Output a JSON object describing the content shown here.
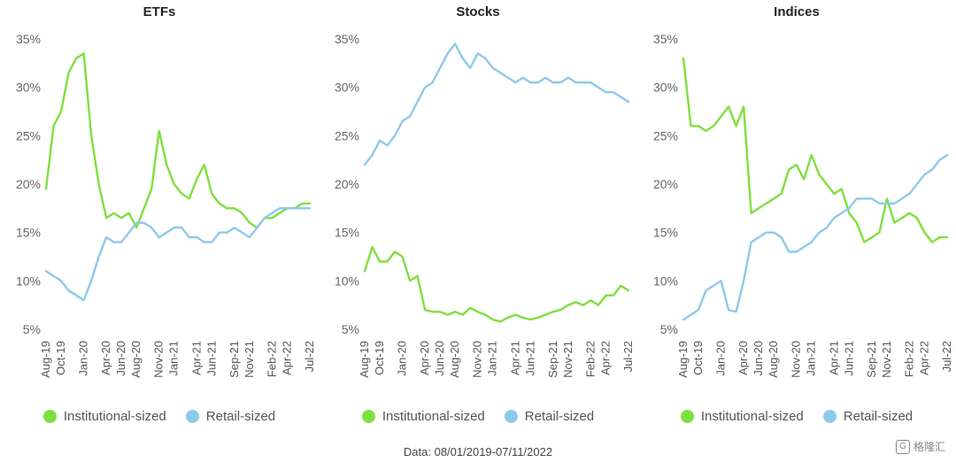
{
  "footer": {
    "text": "Data: 08/01/2019-07/11/2022"
  },
  "watermark": {
    "text": "格隆汇",
    "icon": "G"
  },
  "colors": {
    "institutional": "#7ee03f",
    "retail": "#8ec9ea"
  },
  "legend": {
    "institutional": "Institutional-sized",
    "retail": "Retail-sized"
  },
  "chart_data": [
    {
      "type": "line",
      "title": "ETFs",
      "ylim": [
        5,
        35
      ],
      "yticks": [
        "35%",
        "30%",
        "25%",
        "20%",
        "15%",
        "10%",
        "5%"
      ],
      "xlim": [
        "2019-08",
        "2022-07"
      ],
      "xticks": [
        "Aug-19",
        "Oct-19",
        "Jan-20",
        "Apr-20",
        "Jun-20",
        "Aug-20",
        "Nov-20",
        "Jan-21",
        "Apr-21",
        "Jun-21",
        "Sep-21",
        "Nov-21",
        "Feb-22",
        "Apr-22",
        "Jul-22"
      ],
      "legend_position": "bottom",
      "series": [
        {
          "name": "Institutional-sized",
          "color": "#7ee03f",
          "x": [
            "2019-08",
            "2019-09",
            "2019-10",
            "2019-11",
            "2019-12",
            "2020-01",
            "2020-02",
            "2020-03",
            "2020-04",
            "2020-05",
            "2020-06",
            "2020-07",
            "2020-08",
            "2020-09",
            "2020-10",
            "2020-11",
            "2020-12",
            "2021-01",
            "2021-02",
            "2021-03",
            "2021-04",
            "2021-05",
            "2021-06",
            "2021-07",
            "2021-08",
            "2021-09",
            "2021-10",
            "2021-11",
            "2021-12",
            "2022-01",
            "2022-02",
            "2022-03",
            "2022-04",
            "2022-05",
            "2022-06",
            "2022-07"
          ],
          "values": [
            19.5,
            26,
            27.5,
            31.5,
            33,
            33.5,
            25,
            20,
            16.5,
            17,
            16.5,
            17,
            15.5,
            17.5,
            19.5,
            25.5,
            22,
            20,
            19,
            18.5,
            20.5,
            22,
            19,
            18,
            17.5,
            17.5,
            17,
            16,
            15.5,
            16.5,
            16.5,
            17,
            17.5,
            17.5,
            18,
            18
          ]
        },
        {
          "name": "Retail-sized",
          "color": "#8ec9ea",
          "x": [
            "2019-08",
            "2019-09",
            "2019-10",
            "2019-11",
            "2019-12",
            "2020-01",
            "2020-02",
            "2020-03",
            "2020-04",
            "2020-05",
            "2020-06",
            "2020-07",
            "2020-08",
            "2020-09",
            "2020-10",
            "2020-11",
            "2020-12",
            "2021-01",
            "2021-02",
            "2021-03",
            "2021-04",
            "2021-05",
            "2021-06",
            "2021-07",
            "2021-08",
            "2021-09",
            "2021-10",
            "2021-11",
            "2021-12",
            "2022-01",
            "2022-02",
            "2022-03",
            "2022-04",
            "2022-05",
            "2022-06",
            "2022-07"
          ],
          "values": [
            11,
            10.5,
            10,
            9,
            8.5,
            8,
            10,
            12.5,
            14.5,
            14,
            14,
            15,
            16,
            16,
            15.5,
            14.5,
            15,
            15.5,
            15.5,
            14.5,
            14.5,
            14,
            14,
            15,
            15,
            15.5,
            15,
            14.5,
            15.5,
            16.5,
            17,
            17.5,
            17.5,
            17.5,
            17.5,
            17.5
          ]
        }
      ]
    },
    {
      "type": "line",
      "title": "Stocks",
      "ylim": [
        5,
        35
      ],
      "yticks": [
        "35%",
        "30%",
        "25%",
        "20%",
        "15%",
        "10%",
        "5%"
      ],
      "xlim": [
        "2019-08",
        "2022-07"
      ],
      "xticks": [
        "Aug-19",
        "Oct-19",
        "Jan-20",
        "Apr-20",
        "Jun-20",
        "Aug-20",
        "Nov-20",
        "Jan-21",
        "Apr-21",
        "Jun-21",
        "Sep-21",
        "Nov-21",
        "Feb-22",
        "Apr-22",
        "Jul-22"
      ],
      "legend_position": "bottom",
      "series": [
        {
          "name": "Institutional-sized",
          "color": "#7ee03f",
          "x": [
            "2019-08",
            "2019-09",
            "2019-10",
            "2019-11",
            "2019-12",
            "2020-01",
            "2020-02",
            "2020-03",
            "2020-04",
            "2020-05",
            "2020-06",
            "2020-07",
            "2020-08",
            "2020-09",
            "2020-10",
            "2020-11",
            "2020-12",
            "2021-01",
            "2021-02",
            "2021-03",
            "2021-04",
            "2021-05",
            "2021-06",
            "2021-07",
            "2021-08",
            "2021-09",
            "2021-10",
            "2021-11",
            "2021-12",
            "2022-01",
            "2022-02",
            "2022-03",
            "2022-04",
            "2022-05",
            "2022-06",
            "2022-07"
          ],
          "values": [
            11,
            13.5,
            12,
            12,
            13,
            12.5,
            10,
            10.5,
            7,
            6.8,
            6.8,
            6.5,
            6.8,
            6.5,
            7.2,
            6.8,
            6.5,
            6,
            5.8,
            6.2,
            6.5,
            6.2,
            6,
            6.2,
            6.5,
            6.8,
            7,
            7.5,
            7.8,
            7.5,
            8,
            7.5,
            8.5,
            8.5,
            9.5,
            9
          ]
        },
        {
          "name": "Retail-sized",
          "color": "#8ec9ea",
          "x": [
            "2019-08",
            "2019-09",
            "2019-10",
            "2019-11",
            "2019-12",
            "2020-01",
            "2020-02",
            "2020-03",
            "2020-04",
            "2020-05",
            "2020-06",
            "2020-07",
            "2020-08",
            "2020-09",
            "2020-10",
            "2020-11",
            "2020-12",
            "2021-01",
            "2021-02",
            "2021-03",
            "2021-04",
            "2021-05",
            "2021-06",
            "2021-07",
            "2021-08",
            "2021-09",
            "2021-10",
            "2021-11",
            "2021-12",
            "2022-01",
            "2022-02",
            "2022-03",
            "2022-04",
            "2022-05",
            "2022-06",
            "2022-07"
          ],
          "values": [
            22,
            23,
            24.5,
            24,
            25,
            26.5,
            27,
            28.5,
            30,
            30.5,
            32,
            33.5,
            34.5,
            33,
            32,
            33.5,
            33,
            32,
            31.5,
            31,
            30.5,
            31,
            30.5,
            30.5,
            31,
            30.5,
            30.5,
            31,
            30.5,
            30.5,
            30.5,
            30,
            29.5,
            29.5,
            29,
            28.5
          ]
        }
      ]
    },
    {
      "type": "line",
      "title": "Indices",
      "ylim": [
        5,
        35
      ],
      "yticks": [
        "35%",
        "30%",
        "25%",
        "20%",
        "15%",
        "10%",
        "5%"
      ],
      "xlim": [
        "2019-08",
        "2022-07"
      ],
      "xticks": [
        "Aug-19",
        "Oct-19",
        "Jan-20",
        "Apr-20",
        "Jun-20",
        "Aug-20",
        "Nov-20",
        "Jan-21",
        "Apr-21",
        "Jun-21",
        "Sep-21",
        "Nov-21",
        "Feb-22",
        "Apr-22",
        "Jul-22"
      ],
      "legend_position": "bottom",
      "series": [
        {
          "name": "Institutional-sized",
          "color": "#7ee03f",
          "x": [
            "2019-08",
            "2019-09",
            "2019-10",
            "2019-11",
            "2019-12",
            "2020-01",
            "2020-02",
            "2020-03",
            "2020-04",
            "2020-05",
            "2020-06",
            "2020-07",
            "2020-08",
            "2020-09",
            "2020-10",
            "2020-11",
            "2020-12",
            "2021-01",
            "2021-02",
            "2021-03",
            "2021-04",
            "2021-05",
            "2021-06",
            "2021-07",
            "2021-08",
            "2021-09",
            "2021-10",
            "2021-11",
            "2021-12",
            "2022-01",
            "2022-02",
            "2022-03",
            "2022-04",
            "2022-05",
            "2022-06",
            "2022-07"
          ],
          "values": [
            33,
            26,
            26,
            25.5,
            26,
            27,
            28,
            26,
            28,
            17,
            17.5,
            18,
            18.5,
            19,
            21.5,
            22,
            20.5,
            23,
            21,
            20,
            19,
            19.5,
            17,
            16,
            14,
            14.5,
            15,
            18.5,
            16,
            16.5,
            17,
            16.5,
            15,
            14,
            14.5,
            14.5
          ]
        },
        {
          "name": "Retail-sized",
          "color": "#8ec9ea",
          "x": [
            "2019-08",
            "2019-09",
            "2019-10",
            "2019-11",
            "2019-12",
            "2020-01",
            "2020-02",
            "2020-03",
            "2020-04",
            "2020-05",
            "2020-06",
            "2020-07",
            "2020-08",
            "2020-09",
            "2020-10",
            "2020-11",
            "2020-12",
            "2021-01",
            "2021-02",
            "2021-03",
            "2021-04",
            "2021-05",
            "2021-06",
            "2021-07",
            "2021-08",
            "2021-09",
            "2021-10",
            "2021-11",
            "2021-12",
            "2022-01",
            "2022-02",
            "2022-03",
            "2022-04",
            "2022-05",
            "2022-06",
            "2022-07"
          ],
          "values": [
            6,
            6.5,
            7,
            9,
            9.5,
            10,
            7,
            6.8,
            10,
            14,
            14.5,
            15,
            15,
            14.5,
            13,
            13,
            13.5,
            14,
            15,
            15.5,
            16.5,
            17,
            17.5,
            18.5,
            18.5,
            18.5,
            18,
            18,
            18,
            18.5,
            19,
            20,
            21,
            21.5,
            22.5,
            23
          ]
        }
      ]
    }
  ]
}
